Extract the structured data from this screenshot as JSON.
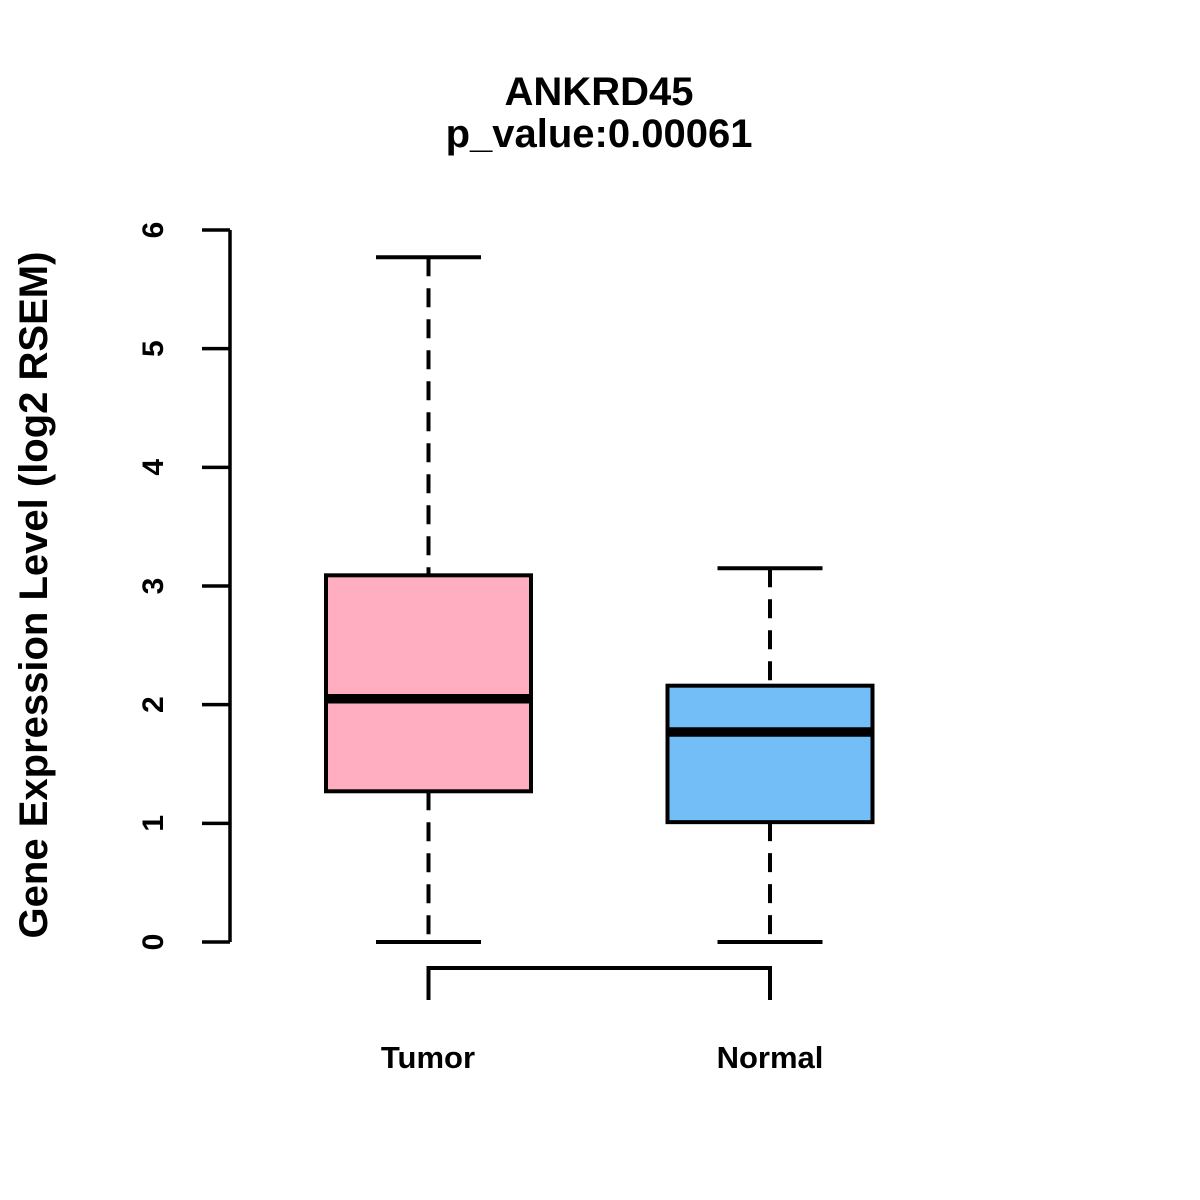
{
  "chart_data": {
    "type": "boxplot",
    "title": "ANKRD45",
    "subtitle": "p_value:0.00061",
    "ylabel": "Gene Expression Level (log2 RSEM)",
    "xlabel": "",
    "ylim": [
      0,
      6
    ],
    "yticks": [
      0,
      1,
      2,
      3,
      4,
      5,
      6
    ],
    "grid": false,
    "legend": "none",
    "categories": [
      "Tumor",
      "Normal"
    ],
    "series": [
      {
        "name": "Tumor",
        "fill_color": "#FFADC0",
        "whisker_low": 0.0,
        "q1": 1.27,
        "median": 2.05,
        "q3": 3.09,
        "whisker_high": 5.77
      },
      {
        "name": "Normal",
        "fill_color": "#74BEF8",
        "whisker_low": 0.0,
        "q1": 1.01,
        "median": 1.77,
        "q3": 2.16,
        "whisker_high": 3.15
      }
    ],
    "stroke_color": "#000000",
    "background_color": "#FFFFFF"
  }
}
